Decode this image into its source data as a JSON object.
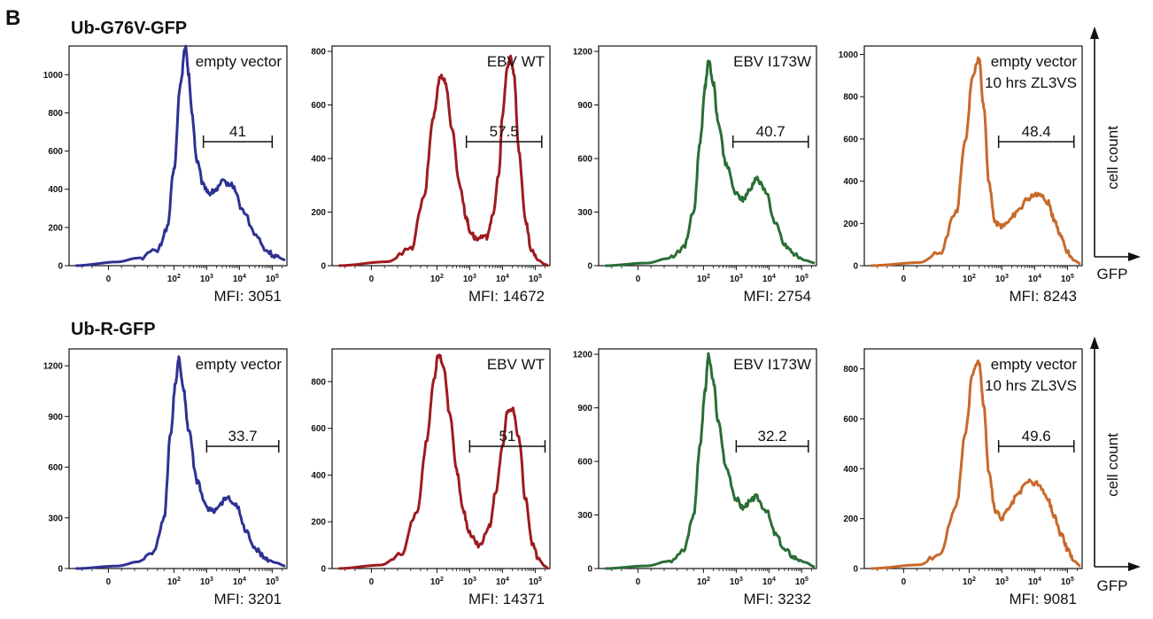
{
  "figure": {
    "panel_letter": "B",
    "x_axis_label": "GFP",
    "y_axis_label": "cell count",
    "rows": [
      {
        "title": "Ub-G76V-GFP"
      },
      {
        "title": "Ub-R-GFP"
      }
    ]
  },
  "chart_data": [
    {
      "type": "area",
      "row": 0,
      "col": 0,
      "color": "#2e3192",
      "label_lines": [
        "empty vector"
      ],
      "gate_value": "41",
      "mfi": "MFI: 3051",
      "ylim": [
        0,
        1150
      ],
      "yticks": [
        0,
        200,
        400,
        600,
        800,
        1000
      ],
      "gate": [
        2.9,
        5.0
      ],
      "x": [
        -1.0,
        0.3,
        0.9,
        1.5,
        1.8,
        2.0,
        2.2,
        2.35,
        2.45,
        2.55,
        2.7,
        2.9,
        3.1,
        3.3,
        3.5,
        3.8,
        4.1,
        4.5,
        4.8,
        5.1,
        5.4
      ],
      "y": [
        0,
        20,
        40,
        80,
        200,
        500,
        950,
        1150,
        1000,
        800,
        550,
        420,
        380,
        400,
        440,
        420,
        290,
        160,
        80,
        50,
        30
      ]
    },
    {
      "type": "area",
      "row": 0,
      "col": 1,
      "color": "#9e1b20",
      "label_lines": [
        "EBV WT"
      ],
      "gate_value": "57.5",
      "mfi": "MFI: 14672",
      "ylim": [
        0,
        820
      ],
      "yticks": [
        0,
        200,
        400,
        600,
        800
      ],
      "gate": [
        2.9,
        5.2
      ],
      "x": [
        -1.0,
        0.5,
        1.2,
        1.6,
        1.9,
        2.1,
        2.25,
        2.45,
        2.7,
        2.9,
        3.0,
        3.2,
        3.5,
        3.7,
        3.9,
        4.0,
        4.15,
        4.25,
        4.35,
        4.5,
        4.7,
        4.9,
        5.1,
        5.3,
        5.4
      ],
      "y": [
        0,
        15,
        60,
        250,
        560,
        710,
        690,
        520,
        300,
        180,
        130,
        100,
        105,
        180,
        350,
        560,
        740,
        780,
        720,
        430,
        170,
        50,
        20,
        5,
        0
      ]
    },
    {
      "type": "area",
      "row": 0,
      "col": 2,
      "color": "#2a6e35",
      "label_lines": [
        "EBV I173W"
      ],
      "gate_value": "40.7",
      "mfi": "MFI: 2754",
      "ylim": [
        0,
        1230
      ],
      "yticks": [
        0,
        300,
        600,
        900,
        1200
      ],
      "gate": [
        2.9,
        5.2
      ],
      "x": [
        -1.0,
        0.3,
        0.9,
        1.4,
        1.7,
        1.9,
        2.05,
        2.15,
        2.3,
        2.45,
        2.7,
        3.0,
        3.2,
        3.4,
        3.6,
        3.9,
        4.2,
        4.5,
        4.8,
        5.1,
        5.4
      ],
      "y": [
        0,
        15,
        40,
        100,
        300,
        700,
        1000,
        1150,
        1020,
        800,
        560,
        400,
        370,
        420,
        490,
        420,
        230,
        110,
        60,
        30,
        15
      ]
    },
    {
      "type": "area",
      "row": 0,
      "col": 3,
      "color": "#c8692a",
      "label_lines": [
        "empty vector",
        "10 hrs ZL3VS"
      ],
      "gate_value": "48.4",
      "mfi": "MFI: 8243",
      "ylim": [
        0,
        1040
      ],
      "yticks": [
        0,
        200,
        400,
        600,
        800,
        1000
      ],
      "gate": [
        2.9,
        5.2
      ],
      "x": [
        -1.0,
        0.5,
        1.1,
        1.6,
        1.9,
        2.1,
        2.3,
        2.45,
        2.6,
        2.8,
        3.0,
        3.2,
        3.5,
        3.8,
        4.1,
        4.4,
        4.6,
        4.8,
        5.0,
        5.2,
        5.4
      ],
      "y": [
        0,
        15,
        60,
        250,
        600,
        900,
        980,
        750,
        400,
        200,
        190,
        210,
        260,
        320,
        340,
        300,
        220,
        140,
        70,
        25,
        10
      ]
    },
    {
      "type": "area",
      "row": 1,
      "col": 0,
      "color": "#2e3192",
      "label_lines": [
        "empty vector"
      ],
      "gate_value": "33.7",
      "mfi": "MFI: 3201",
      "ylim": [
        0,
        1300
      ],
      "yticks": [
        0,
        300,
        600,
        900,
        1200
      ],
      "gate": [
        3.0,
        5.2
      ],
      "x": [
        -1.0,
        0.3,
        0.9,
        1.4,
        1.7,
        1.9,
        2.05,
        2.15,
        2.3,
        2.45,
        2.7,
        3.0,
        3.2,
        3.4,
        3.6,
        3.9,
        4.2,
        4.5,
        4.8,
        5.1,
        5.4
      ],
      "y": [
        0,
        15,
        40,
        100,
        300,
        800,
        1100,
        1240,
        1050,
        820,
        520,
        360,
        340,
        380,
        420,
        380,
        220,
        110,
        60,
        35,
        15
      ]
    },
    {
      "type": "area",
      "row": 1,
      "col": 1,
      "color": "#9e1b20",
      "label_lines": [
        "EBV WT"
      ],
      "gate_value": "51",
      "mfi": "MFI: 14371",
      "ylim": [
        0,
        940
      ],
      "yticks": [
        0,
        200,
        400,
        600,
        800
      ],
      "gate": [
        3.0,
        5.3
      ],
      "x": [
        -1.0,
        0.3,
        0.9,
        1.4,
        1.7,
        1.9,
        2.05,
        2.2,
        2.4,
        2.6,
        2.8,
        3.0,
        3.3,
        3.6,
        3.8,
        4.0,
        4.15,
        4.3,
        4.5,
        4.7,
        4.9,
        5.1,
        5.3,
        5.4
      ],
      "y": [
        0,
        15,
        60,
        250,
        550,
        800,
        920,
        870,
        650,
        420,
        250,
        150,
        100,
        180,
        330,
        520,
        670,
        690,
        560,
        300,
        110,
        40,
        10,
        0
      ]
    },
    {
      "type": "area",
      "row": 1,
      "col": 2,
      "color": "#2a6e35",
      "label_lines": [
        "EBV I173W"
      ],
      "gate_value": "32.2",
      "mfi": "MFI: 3232",
      "ylim": [
        0,
        1230
      ],
      "yticks": [
        0,
        300,
        600,
        900,
        1200
      ],
      "gate": [
        3.0,
        5.2
      ],
      "x": [
        -1.0,
        0.3,
        0.9,
        1.4,
        1.7,
        1.9,
        2.05,
        2.15,
        2.3,
        2.45,
        2.7,
        3.0,
        3.2,
        3.4,
        3.6,
        3.9,
        4.2,
        4.5,
        4.8,
        5.1,
        5.4
      ],
      "y": [
        0,
        15,
        40,
        100,
        300,
        700,
        1000,
        1190,
        1050,
        820,
        560,
        390,
        340,
        370,
        400,
        330,
        190,
        100,
        60,
        35,
        10
      ]
    },
    {
      "type": "area",
      "row": 1,
      "col": 3,
      "color": "#c8692a",
      "label_lines": [
        "empty vector",
        "10 hrs ZL3VS"
      ],
      "gate_value": "49.6",
      "mfi": "MFI: 9081",
      "ylim": [
        0,
        880
      ],
      "yticks": [
        0,
        200,
        400,
        600,
        800
      ],
      "gate": [
        2.9,
        5.2
      ],
      "x": [
        -1.0,
        0.5,
        1.1,
        1.6,
        1.9,
        2.1,
        2.3,
        2.45,
        2.6,
        2.8,
        3.0,
        3.2,
        3.5,
        3.8,
        4.1,
        4.4,
        4.6,
        4.8,
        5.0,
        5.2,
        5.4
      ],
      "y": [
        0,
        15,
        60,
        250,
        550,
        780,
        830,
        650,
        380,
        230,
        200,
        240,
        300,
        350,
        340,
        280,
        210,
        140,
        80,
        30,
        10
      ]
    }
  ]
}
